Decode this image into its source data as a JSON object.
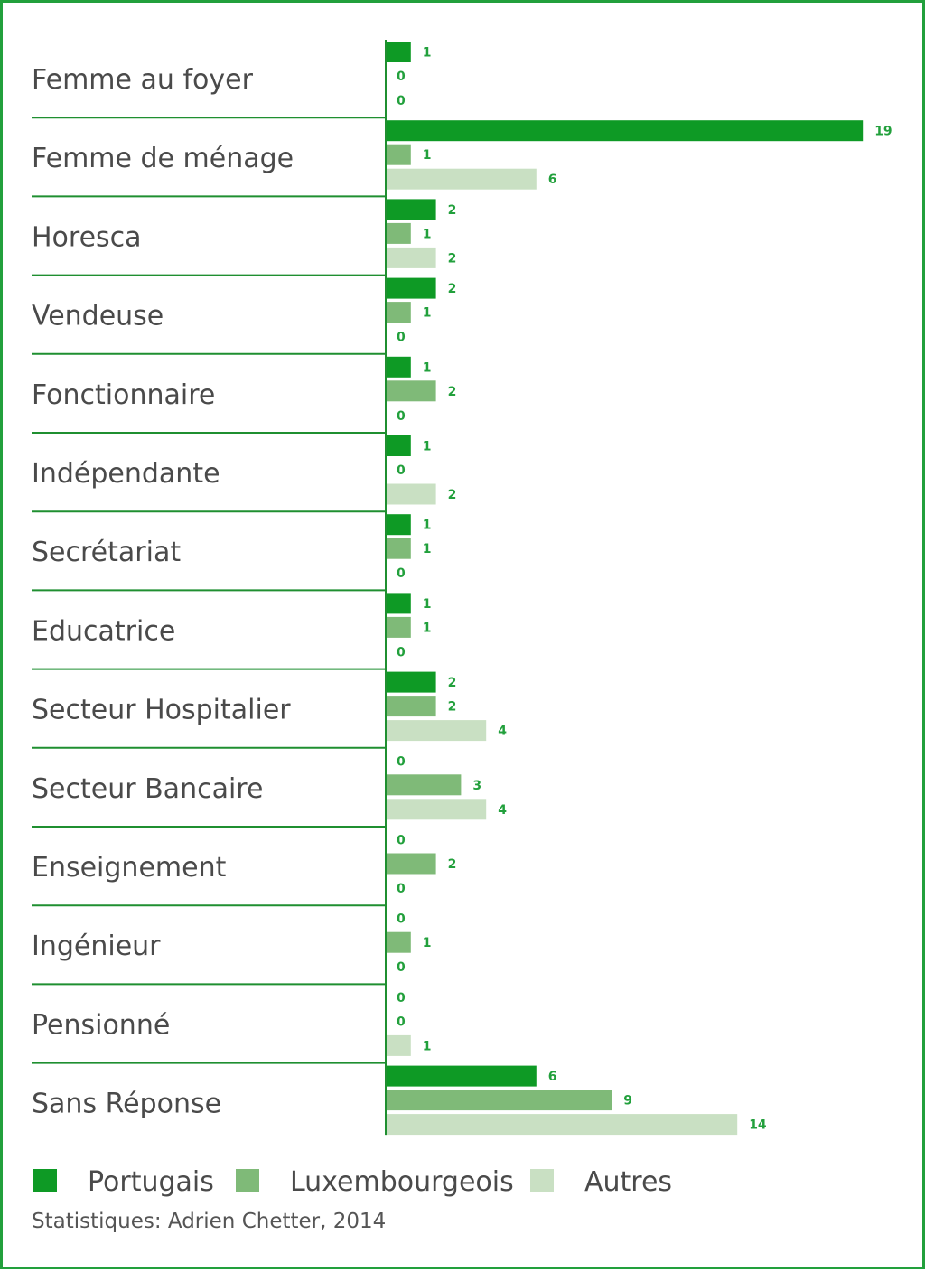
{
  "chart_data": {
    "type": "bar",
    "orientation": "horizontal",
    "categories": [
      "Femme au foyer",
      "Femme de ménage",
      "Horesca",
      "Vendeuse",
      "Fonctionnaire",
      "Indépendante",
      "Secrétariat",
      "Educatrice",
      "Secteur Hospitalier",
      "Secteur Bancaire",
      "Enseignement",
      "Ingénieur",
      "Pensionné",
      "Sans Réponse"
    ],
    "series": [
      {
        "name": "Portugais",
        "color": "#0e9a25",
        "values": [
          1,
          19,
          2,
          2,
          1,
          1,
          1,
          1,
          2,
          0,
          0,
          0,
          0,
          6
        ]
      },
      {
        "name": "Luxembourgeois",
        "color": "#7fba78",
        "values": [
          0,
          1,
          1,
          1,
          2,
          0,
          1,
          1,
          2,
          3,
          2,
          1,
          0,
          9
        ]
      },
      {
        "name": "Autres",
        "color": "#c9e0c3",
        "values": [
          0,
          6,
          2,
          0,
          0,
          2,
          0,
          0,
          4,
          4,
          0,
          0,
          1,
          14
        ]
      }
    ],
    "xlim": [
      0,
      19
    ],
    "title": "",
    "xlabel": "",
    "ylabel": "",
    "grid": false,
    "legend_position": "bottom-left",
    "data_labels": true
  },
  "credit": "Statistiques: Adrien Chetter, 2014",
  "colors": {
    "border": "#22a03c",
    "separator": "#1f8f30",
    "label_text": "#4a4a4a",
    "value_text": "#22a03c"
  }
}
